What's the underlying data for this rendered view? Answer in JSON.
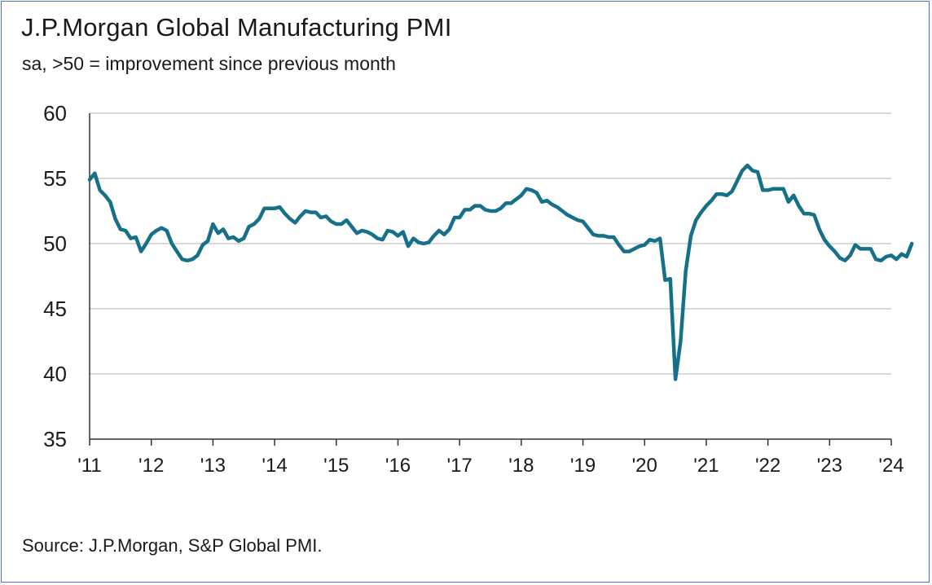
{
  "title": "J.P.Morgan Global Manufacturing PMI",
  "subtitle": "sa, >50 = improvement since previous month",
  "source": "Source: J.P.Morgan, S&P Global PMI.",
  "colors": {
    "line": "#16708a",
    "grid": "#d9d9d9",
    "axis": "#333333",
    "border": "#4a6fd0"
  },
  "chart_data": {
    "type": "line",
    "title": "J.P.Morgan Global Manufacturing PMI",
    "subtitle": "sa, >50 = improvement since previous month",
    "xlabel": "",
    "ylabel": "",
    "ylim": [
      35,
      60
    ],
    "yticks": [
      35,
      40,
      45,
      50,
      55,
      60
    ],
    "xlim": [
      2011,
      2024
    ],
    "xticks": [
      {
        "year": 2011,
        "label": "'11"
      },
      {
        "year": 2012,
        "label": "'12"
      },
      {
        "year": 2013,
        "label": "'13"
      },
      {
        "year": 2014,
        "label": "'14"
      },
      {
        "year": 2015,
        "label": "'15"
      },
      {
        "year": 2016,
        "label": "'16"
      },
      {
        "year": 2017,
        "label": "'17"
      },
      {
        "year": 2018,
        "label": "'18"
      },
      {
        "year": 2019,
        "label": "'19"
      },
      {
        "year": 2020,
        "label": "'20"
      },
      {
        "year": 2021,
        "label": "'21"
      },
      {
        "year": 2022,
        "label": "'22"
      },
      {
        "year": 2023,
        "label": "'23"
      },
      {
        "year": 2024,
        "label": "'24"
      }
    ],
    "grid": true,
    "series": [
      {
        "name": "Global Manufacturing PMI",
        "start": "2011-01",
        "frequency": "monthly",
        "values": [
          54.9,
          55.4,
          54.1,
          53.7,
          53.2,
          51.9,
          51.1,
          51.0,
          50.4,
          50.5,
          49.4,
          50.0,
          50.7,
          51.0,
          51.2,
          51.0,
          50.0,
          49.4,
          48.8,
          48.7,
          48.8,
          49.1,
          49.9,
          50.2,
          51.5,
          50.8,
          51.1,
          50.4,
          50.5,
          50.2,
          50.4,
          51.3,
          51.5,
          51.9,
          52.7,
          52.7,
          52.7,
          52.8,
          52.3,
          51.9,
          51.6,
          52.1,
          52.5,
          52.4,
          52.4,
          52.0,
          52.1,
          51.7,
          51.5,
          51.5,
          51.8,
          51.3,
          50.8,
          51.0,
          50.9,
          50.7,
          50.4,
          50.3,
          51.0,
          50.9,
          50.6,
          50.9,
          49.8,
          50.4,
          50.1,
          50.0,
          50.1,
          50.6,
          51.0,
          50.7,
          51.1,
          52.0,
          52.0,
          52.6,
          52.6,
          52.9,
          52.9,
          52.6,
          52.5,
          52.5,
          52.7,
          53.1,
          53.1,
          53.4,
          53.7,
          54.2,
          54.1,
          53.9,
          53.2,
          53.3,
          53.0,
          52.8,
          52.5,
          52.2,
          52.0,
          51.8,
          51.7,
          51.2,
          50.7,
          50.6,
          50.6,
          50.5,
          50.5,
          49.9,
          49.4,
          49.4,
          49.6,
          49.8,
          49.9,
          50.3,
          50.2,
          50.4,
          47.2,
          47.3,
          39.6,
          42.5,
          47.9,
          50.6,
          51.8,
          52.4,
          52.9,
          53.3,
          53.8,
          53.8,
          53.7,
          54.0,
          54.8,
          55.6,
          56.0,
          55.6,
          55.5,
          54.1,
          54.1,
          54.2,
          54.2,
          54.2,
          53.2,
          53.7,
          52.9,
          52.3,
          52.3,
          52.2,
          51.1,
          50.3,
          49.8,
          49.4,
          48.9,
          48.7,
          49.1,
          49.9,
          49.6,
          49.6,
          49.6,
          48.8,
          48.7,
          49.0,
          49.1,
          48.8,
          49.2,
          49.0,
          50.0
        ]
      }
    ]
  }
}
